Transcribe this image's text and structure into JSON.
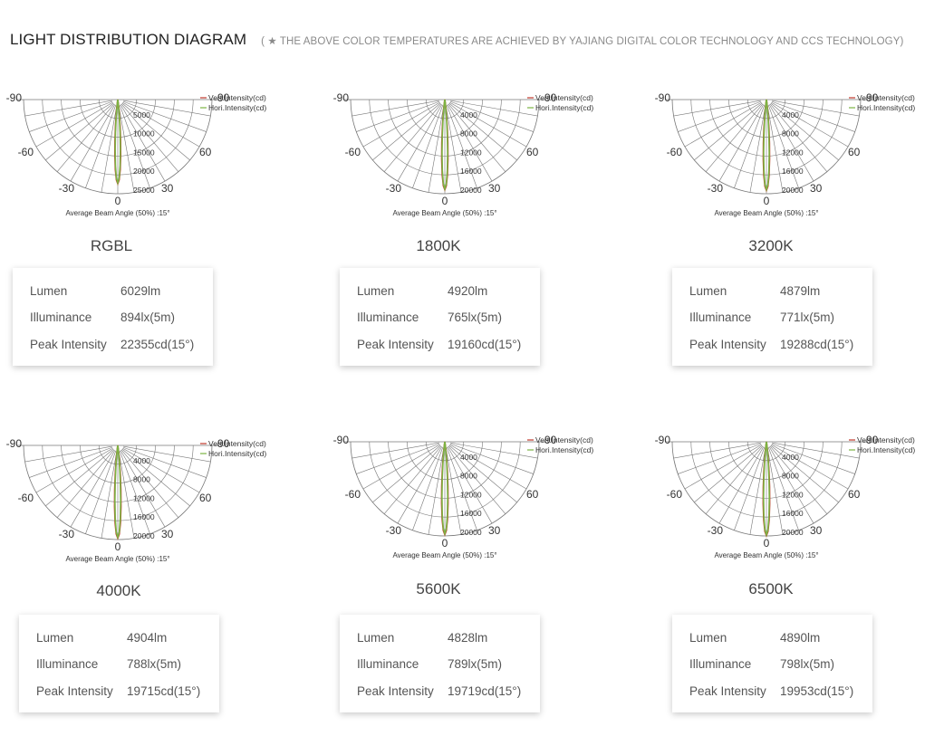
{
  "header": {
    "title": "LIGHT DISTRIBUTION DIAGRAM",
    "note": "( ★ THE ABOVE COLOR TEMPERATURES ARE ACHIEVED BY YAJIANG DIGITAL COLOR TECHNOLOGY AND CCS TECHNOLOGY)"
  },
  "spec_labels": {
    "lumen": "Lumen",
    "illuminance": "Illuminance",
    "peak": "Peak Intensity"
  },
  "polar_labels": {
    "angles": [
      "-90",
      "-60",
      "-30",
      "0",
      "30",
      "60",
      "90"
    ],
    "legend_vert": "Vert.Intensity(cd)",
    "legend_hori": "Hori.Intensity(cd)",
    "beam_angle": "Average Beam Angle (50%) :15°"
  },
  "colors": {
    "vertical_curve": "#c0392b",
    "horizontal_curve": "#7cb342",
    "grid": "#777777"
  },
  "chart_data": [
    {
      "type": "polar",
      "name": "RGBL",
      "radial_ticks": [
        5000,
        10000,
        15000,
        20000,
        25000
      ],
      "rmax": 25000,
      "beam_angle_deg": 15,
      "peak_cd": 22355,
      "specs": {
        "lumen": "6029lm",
        "illuminance": "894lx(5m)",
        "peak": "22355cd(15°)"
      }
    },
    {
      "type": "polar",
      "name": "1800K",
      "radial_ticks": [
        4000,
        8000,
        12000,
        16000,
        20000
      ],
      "rmax": 20000,
      "beam_angle_deg": 15,
      "peak_cd": 19160,
      "specs": {
        "lumen": "4920lm",
        "illuminance": "765lx(5m)",
        "peak": "19160cd(15°)"
      }
    },
    {
      "type": "polar",
      "name": "3200K",
      "radial_ticks": [
        4000,
        8000,
        12000,
        16000,
        20000
      ],
      "rmax": 20000,
      "beam_angle_deg": 15,
      "peak_cd": 19288,
      "specs": {
        "lumen": "4879lm",
        "illuminance": "771lx(5m)",
        "peak": "19288cd(15°)"
      }
    },
    {
      "type": "polar",
      "name": "4000K",
      "radial_ticks": [
        4000,
        8000,
        12000,
        16000,
        20000
      ],
      "rmax": 20000,
      "beam_angle_deg": 15,
      "peak_cd": 19715,
      "specs": {
        "lumen": "4904lm",
        "illuminance": "788lx(5m)",
        "peak": "19715cd(15°)"
      }
    },
    {
      "type": "polar",
      "name": "5600K",
      "radial_ticks": [
        4000,
        8000,
        12000,
        16000,
        20000
      ],
      "rmax": 20000,
      "beam_angle_deg": 15,
      "peak_cd": 19719,
      "specs": {
        "lumen": "4828lm",
        "illuminance": "789lx(5m)",
        "peak": "19719cd(15°)"
      }
    },
    {
      "type": "polar",
      "name": "6500K",
      "radial_ticks": [
        4000,
        8000,
        12000,
        16000,
        20000
      ],
      "rmax": 20000,
      "beam_angle_deg": 15,
      "peak_cd": 19953,
      "specs": {
        "lumen": "4890lm",
        "illuminance": "798lx(5m)",
        "peak": "19953cd(15°)"
      }
    }
  ]
}
